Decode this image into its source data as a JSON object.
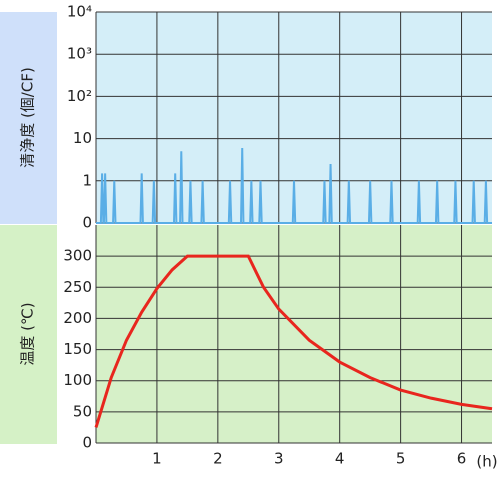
{
  "chart_data": [
    {
      "type": "line",
      "ylabel": "清浄度 (個/CF)",
      "yscale": "log",
      "color": "#5aaee6",
      "background": "#d4eef8",
      "label_background": "#cfe0fa",
      "xlim": [
        0,
        6.5
      ],
      "xticks": [
        1,
        2,
        3,
        4,
        5,
        6
      ],
      "ylim": [
        0,
        10000
      ],
      "yticks": [
        0,
        1,
        10,
        {
          "value": 100,
          "label": "10²"
        },
        {
          "value": 1000,
          "label": "10³"
        },
        {
          "value": 10000,
          "label": "10⁴"
        }
      ],
      "x": [
        0,
        0.08,
        0.1,
        0.12,
        0.13,
        0.15,
        0.17,
        0.28,
        0.3,
        0.32,
        0.73,
        0.75,
        0.77,
        0.93,
        0.95,
        0.97,
        1.28,
        1.3,
        1.32,
        1.38,
        1.4,
        1.42,
        1.53,
        1.55,
        1.57,
        1.73,
        1.75,
        1.77,
        2.18,
        2.2,
        2.22,
        2.38,
        2.4,
        2.42,
        2.53,
        2.55,
        2.57,
        2.68,
        2.7,
        2.72,
        3.23,
        3.25,
        3.27,
        3.73,
        3.75,
        3.77,
        3.83,
        3.85,
        3.87,
        4.13,
        4.15,
        4.17,
        4.48,
        4.5,
        4.52,
        4.83,
        4.85,
        4.87,
        5.28,
        5.3,
        5.32,
        5.58,
        5.6,
        5.62,
        5.88,
        5.9,
        5.92,
        6.18,
        6.2,
        6.22,
        6.38,
        6.4,
        6.42,
        6.5
      ],
      "values": [
        0,
        0,
        1.5,
        0,
        0,
        1.5,
        0,
        0,
        1,
        0,
        0,
        1.5,
        0,
        0,
        1,
        0,
        0,
        1.5,
        0,
        0,
        5,
        0,
        0,
        1,
        0,
        0,
        1,
        0,
        0,
        1,
        0,
        0,
        6,
        0,
        0,
        1,
        0,
        0,
        1,
        0,
        0,
        1,
        0,
        0,
        1,
        0,
        0,
        2.5,
        0,
        0,
        1,
        0,
        0,
        1,
        0,
        0,
        1,
        0,
        0,
        1,
        0,
        0,
        1,
        0,
        0,
        1,
        0,
        0,
        1,
        0,
        0,
        1,
        0,
        0
      ]
    },
    {
      "type": "line",
      "ylabel": "温度 (℃)",
      "xlabel": "(h)",
      "color": "#e8261e",
      "background": "#d6f0c8",
      "label_background": "#d5f1c6",
      "xlim": [
        0,
        6.5
      ],
      "xticks": [
        1,
        2,
        3,
        4,
        5,
        6
      ],
      "ylim": [
        0,
        350
      ],
      "yticks": [
        0,
        50,
        100,
        150,
        200,
        250,
        300
      ],
      "x": [
        0,
        0.25,
        0.5,
        0.75,
        1,
        1.25,
        1.5,
        2.5,
        2.75,
        3,
        3.5,
        4,
        4.5,
        5,
        5.5,
        6,
        6.5
      ],
      "values": [
        25,
        105,
        165,
        210,
        248,
        278,
        300,
        300,
        250,
        215,
        165,
        130,
        105,
        85,
        72,
        62,
        55
      ]
    }
  ]
}
